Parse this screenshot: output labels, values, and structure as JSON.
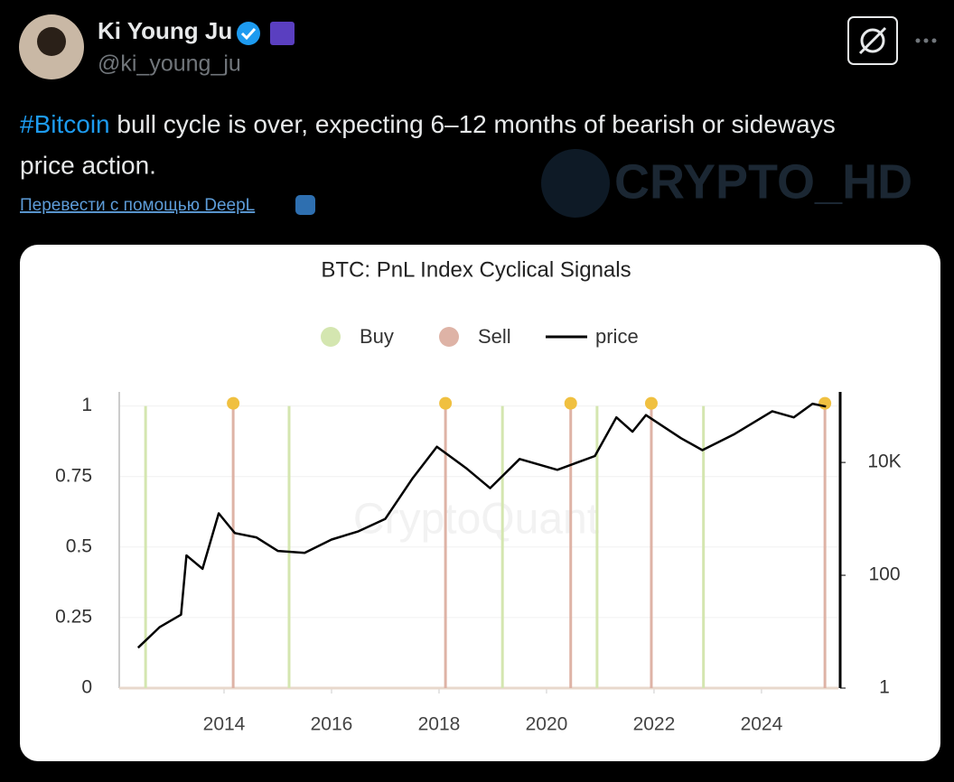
{
  "tweet": {
    "name": "Ki Young Ju",
    "handle": "@ki_young_ju",
    "hashtag": "#Bitcoin",
    "text_line1": " bull cycle is over, expecting 6–12 months of bearish or sideways",
    "text_line2": "price action.",
    "translate": "Перевести с помощью DeepL",
    "watermark": "CRYPTO_HD"
  },
  "chart_data": {
    "type": "line",
    "title": "BTC: PnL Index Cyclical Signals",
    "watermark": "CryptoQuant",
    "xlim": [
      2012.05,
      2025.43
    ],
    "xticks": [
      2014,
      2016,
      2018,
      2020,
      2022,
      2024
    ],
    "ylim": [
      0,
      1.05
    ],
    "yticks": [
      0,
      0.25,
      0.5,
      0.75,
      1
    ],
    "y2lim": [
      1,
      178000
    ],
    "y2ticks": [
      1,
      100,
      {
        "value": 10000,
        "label": "10K"
      }
    ],
    "y2log": true,
    "grid": true,
    "series": [
      {
        "name": "Buy",
        "type": "bar",
        "color": "#d4e6b0",
        "x": [
          2012.54,
          2015.21,
          2019.18,
          2020.94,
          2022.92
        ],
        "values": [
          1,
          1,
          1,
          1,
          1
        ]
      },
      {
        "name": "Sell",
        "type": "bar",
        "color": "#deb3a6",
        "marker_color": "#f0c040",
        "x": [
          2014.17,
          2018.12,
          2020.45,
          2021.95,
          2025.18
        ],
        "values": [
          1,
          1,
          1,
          1,
          1
        ]
      },
      {
        "name": "price",
        "type": "line",
        "axis": "y2",
        "color": "#000000",
        "x": [
          2012.4,
          2012.8,
          2013.2,
          2013.3,
          2013.6,
          2013.9,
          2014.2,
          2014.6,
          2015.0,
          2015.5,
          2016.0,
          2016.5,
          2017.0,
          2017.5,
          2017.96,
          2018.5,
          2018.95,
          2019.5,
          2020.2,
          2020.9,
          2021.3,
          2021.6,
          2021.85,
          2022.5,
          2022.9,
          2023.5,
          2024.2,
          2024.6,
          2024.95,
          2025.2
        ],
        "values": [
          5.2,
          12,
          20,
          225,
          130,
          1250,
          560,
          470,
          270,
          250,
          430,
          600,
          1000,
          5100,
          19000,
          8000,
          3500,
          11500,
          7400,
          13000,
          63000,
          35000,
          69000,
          27000,
          16500,
          32000,
          81000,
          63000,
          110000,
          98000
        ]
      }
    ]
  }
}
